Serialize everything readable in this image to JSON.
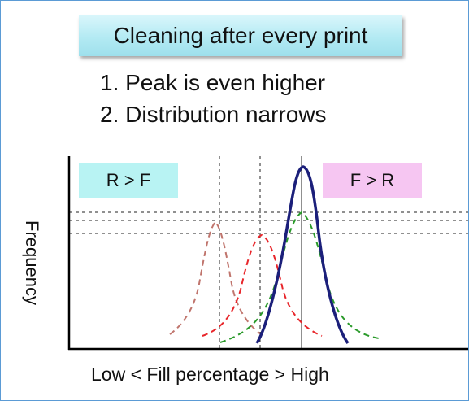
{
  "title": "Cleaning after every print",
  "points": [
    "1. Peak is even higher",
    "2. Distribution narrows"
  ],
  "tags": {
    "left": "R > F",
    "right": "F > R"
  },
  "axes": {
    "ylabel": "Frequency",
    "xlabel": "Low < Fill percentage > High"
  },
  "colors": {
    "frame_border": "#5b9bd5",
    "title_fill": "#b3eaf3",
    "tag_left_fill": "#b8f3f3",
    "tag_right_fill": "#f6c6f2",
    "curve_brown": "#c0756d",
    "curve_red": "#e8262b",
    "curve_green": "#2a9a2a",
    "curve_navy": "#1b1f7a"
  }
}
